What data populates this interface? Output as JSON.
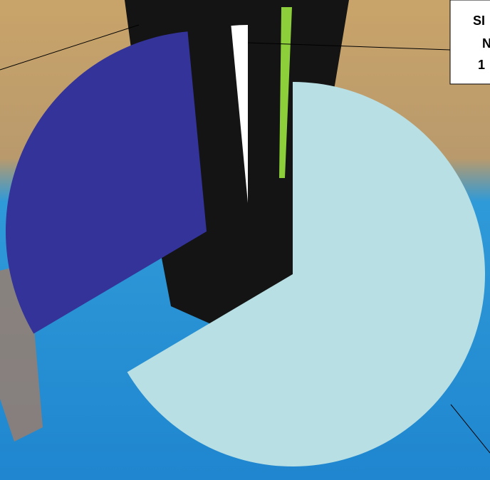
{
  "chart_data": {
    "type": "pie",
    "values": [
      66.5,
      32,
      1.5
    ],
    "colors": [
      "#b8dfe3",
      "#33339a",
      "#ffffff"
    ],
    "label_box": [
      "SI",
      "N",
      "1"
    ]
  }
}
